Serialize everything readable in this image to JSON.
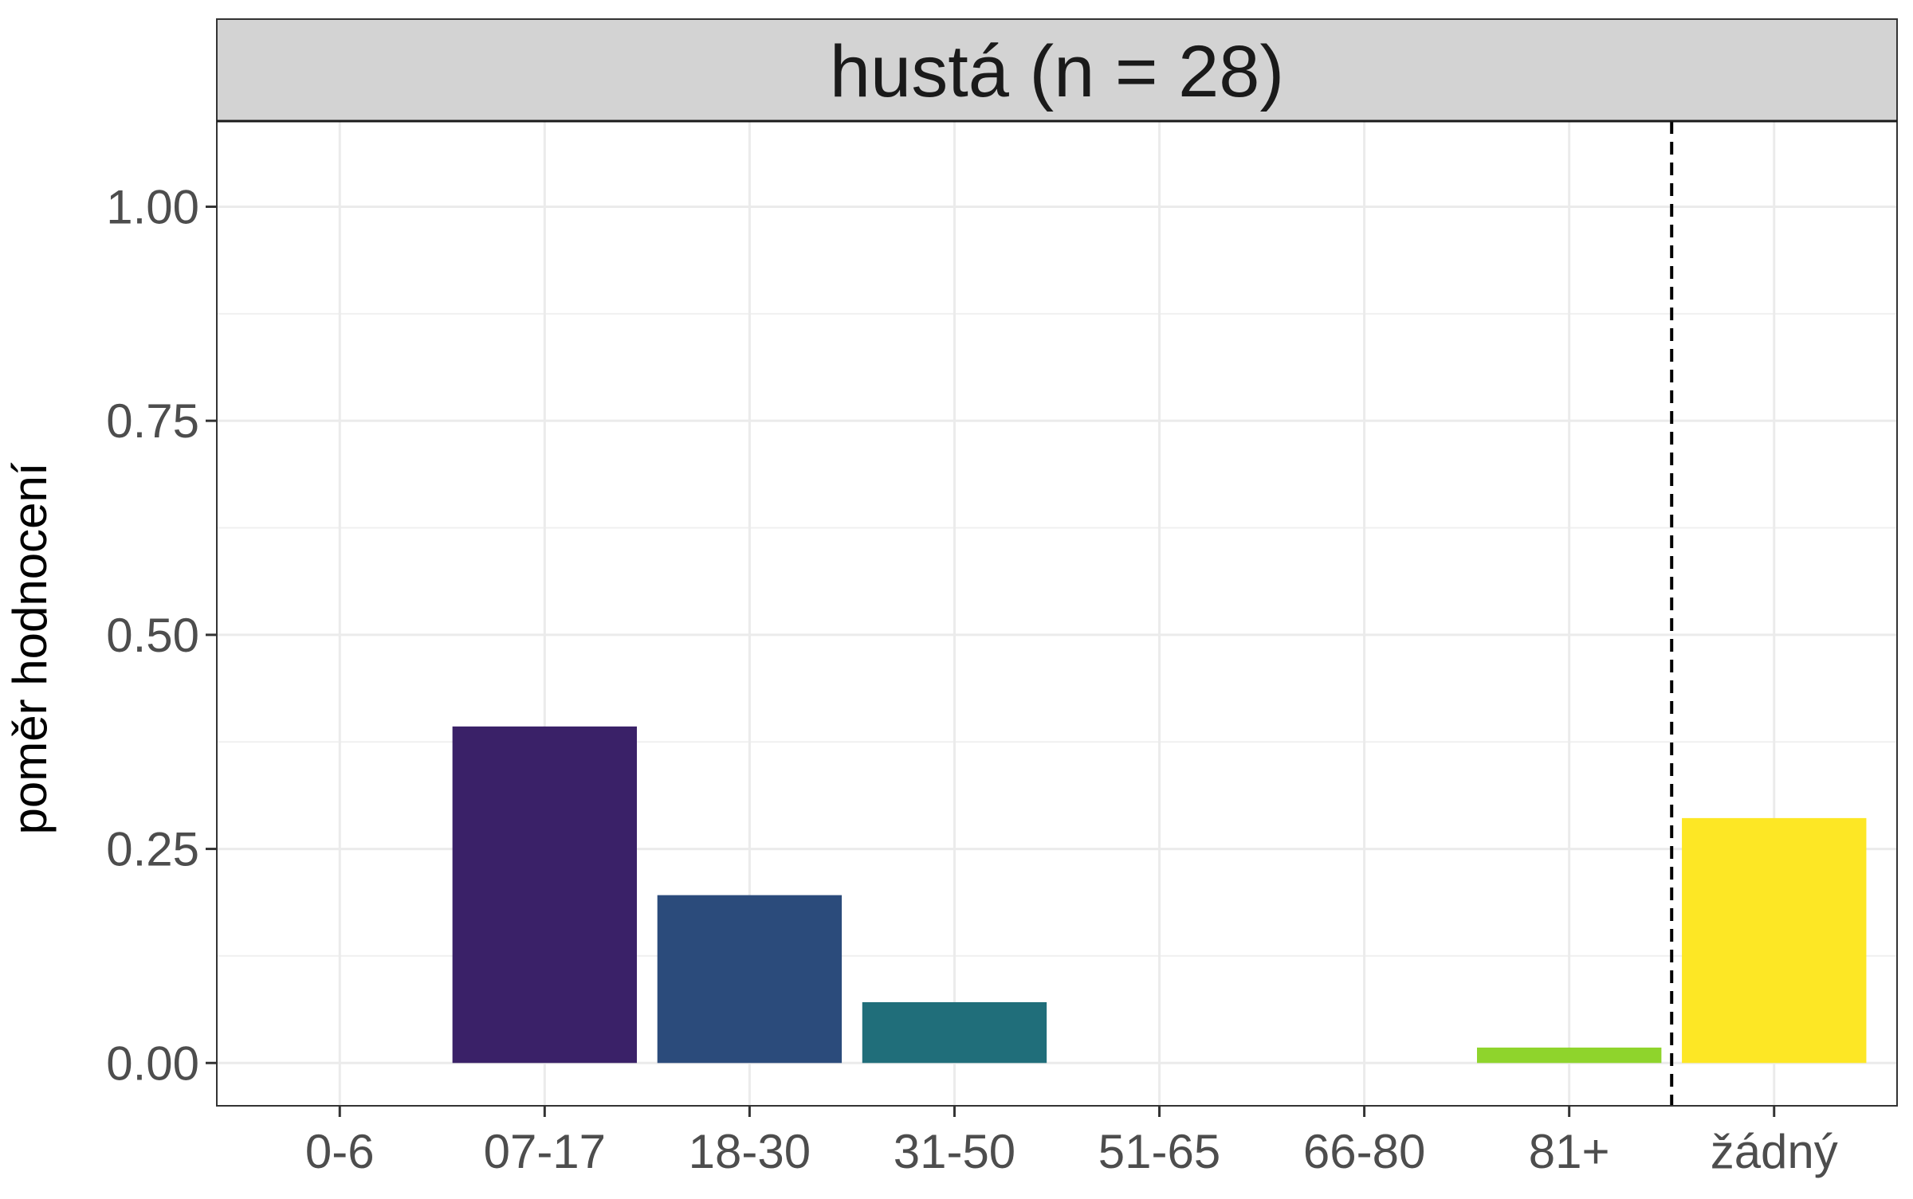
{
  "chart_data": {
    "type": "bar",
    "title": "hustá (n = 28)",
    "xlabel": "",
    "ylabel": "poměr hodnocení",
    "categories": [
      "0-6",
      "07-17",
      "18-30",
      "31-50",
      "51-65",
      "66-80",
      "81+",
      "žádný"
    ],
    "values": [
      0,
      0.393,
      0.196,
      0.071,
      0,
      0,
      0.018,
      0.286
    ],
    "colors": [
      "#440154",
      "#3a2168",
      "#2b4b7b",
      "#206e7a",
      "#21918c",
      "#3ab964",
      "#8fd42c",
      "#fde725"
    ],
    "ylim": [
      -0.05,
      1.1
    ],
    "yticks": [
      0,
      0.25,
      0.5,
      0.75,
      1
    ],
    "ytick_labels": [
      "0.00",
      "0.25",
      "0.50",
      "0.75",
      "1.00"
    ],
    "reference_line": {
      "after_category": "81+",
      "style": "dashed"
    },
    "grid": true,
    "legend": "none"
  }
}
